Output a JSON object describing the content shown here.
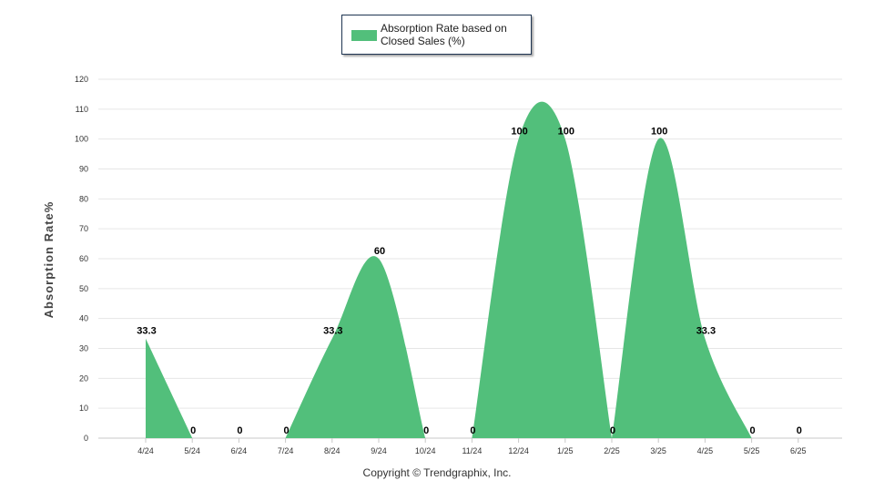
{
  "chart_data": {
    "type": "area",
    "categories": [
      "4/24",
      "5/24",
      "6/24",
      "7/24",
      "8/24",
      "9/24",
      "10/24",
      "11/24",
      "12/24",
      "1/25",
      "2/25",
      "3/25",
      "4/25",
      "5/25",
      "6/25"
    ],
    "series": [
      {
        "name": "Absorption Rate based on Closed Sales (%)",
        "values": [
          33.3,
          0,
          0,
          0,
          33.3,
          60,
          0,
          0,
          100,
          100,
          0,
          100,
          33.3,
          0,
          0
        ],
        "data_labels": [
          "33.3",
          "0",
          "0",
          "0",
          "33.3",
          "60",
          "0",
          "0",
          "100",
          "100",
          "0",
          "100",
          "33.3",
          "0",
          "0"
        ],
        "color": "#52bf7b"
      }
    ],
    "ylabel": "Absorption Rate%",
    "xlabel": "",
    "ylim": [
      0,
      120
    ],
    "yticks": [
      0,
      10,
      20,
      30,
      40,
      50,
      60,
      70,
      80,
      90,
      100,
      110,
      120
    ],
    "grid": true,
    "legend_position": "top-center",
    "gridline_color": "#e6e6e6"
  },
  "footer": {
    "copyright": "Copyright © Trendgraphix, Inc."
  }
}
